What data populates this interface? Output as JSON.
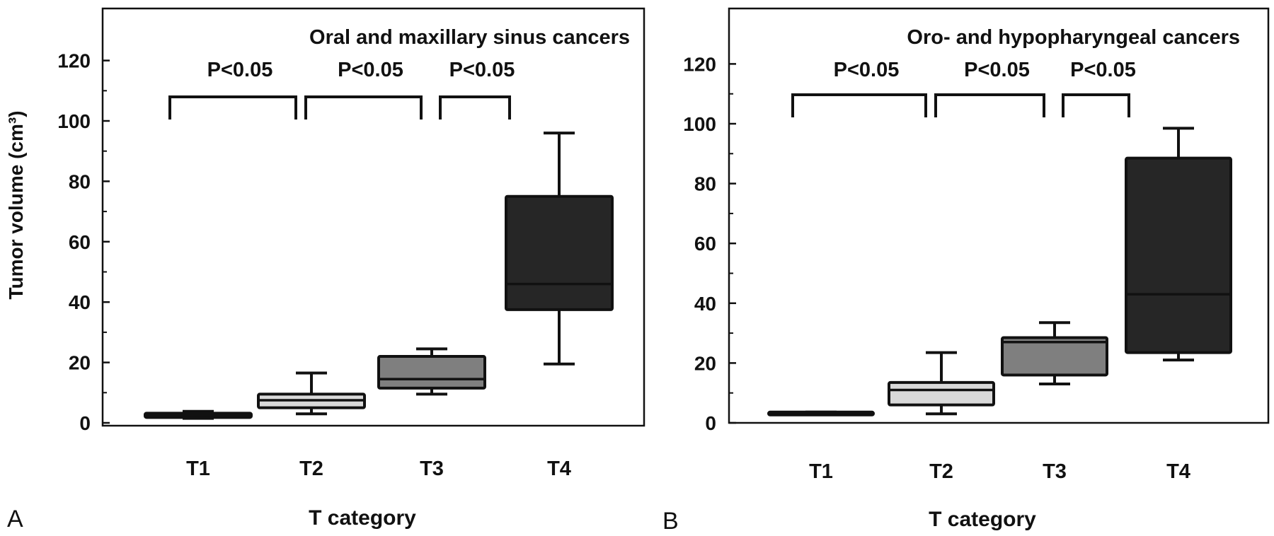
{
  "figure": {
    "ylabel": "Tumor volume (cm³)",
    "xlabel": "T category"
  },
  "colors": {
    "frame": "#111111",
    "T1": "#2a2a2a",
    "T2": "#d9d9d9",
    "T3": "#7f7f7f",
    "T4": "#262626",
    "median_on_dark": "#111111"
  },
  "chart_data": [
    {
      "type": "box",
      "panel_letter": "A",
      "title": "Oral and maxillary sinus cancers",
      "xlabel": "T category",
      "ylabel": "Tumor volume (cm³)",
      "ylim": [
        0,
        135
      ],
      "yticks": [
        0,
        20,
        40,
        60,
        80,
        100,
        120
      ],
      "grid": false,
      "categories": [
        "T1",
        "T2",
        "T3",
        "T4"
      ],
      "boxes": [
        {
          "category": "T1",
          "whisker_low": 1.5,
          "q1": 1.8,
          "median": 2.5,
          "q3": 3.2,
          "whisker_high": 3.8
        },
        {
          "category": "T2",
          "whisker_low": 3,
          "q1": 5,
          "median": 7.5,
          "q3": 9.5,
          "whisker_high": 16.5
        },
        {
          "category": "T3",
          "whisker_low": 9.5,
          "q1": 11.5,
          "median": 14.5,
          "q3": 22,
          "whisker_high": 24.5
        },
        {
          "category": "T4",
          "whisker_low": 19.5,
          "q1": 37.5,
          "median": 46,
          "q3": 75,
          "whisker_high": 96
        }
      ],
      "comparisons": [
        {
          "from": "T1",
          "to": "T2",
          "label": "P<0.05"
        },
        {
          "from": "T2",
          "to": "T3",
          "label": "P<0.05"
        },
        {
          "from": "T3",
          "to": "T4",
          "label": "P<0.05"
        }
      ]
    },
    {
      "type": "box",
      "panel_letter": "B",
      "title": "Oro- and hypopharyngeal cancers",
      "xlabel": "T category",
      "ylim": [
        0,
        135
      ],
      "yticks": [
        0,
        20,
        40,
        60,
        80,
        100,
        120
      ],
      "grid": false,
      "categories": [
        "T1",
        "T2",
        "T3",
        "T4"
      ],
      "boxes": [
        {
          "category": "T1",
          "whisker_low": 2.8,
          "q1": 2.8,
          "median": 3.2,
          "q3": 3.6,
          "whisker_high": 3.6
        },
        {
          "category": "T2",
          "whisker_low": 3,
          "q1": 6,
          "median": 11,
          "q3": 13.5,
          "whisker_high": 23.5
        },
        {
          "category": "T3",
          "whisker_low": 13,
          "q1": 16,
          "median": 27,
          "q3": 28.5,
          "whisker_high": 33.5
        },
        {
          "category": "T4",
          "whisker_low": 21,
          "q1": 23.5,
          "median": 43,
          "q3": 88.5,
          "whisker_high": 98.5
        }
      ],
      "comparisons": [
        {
          "from": "T1",
          "to": "T2",
          "label": "P<0.05"
        },
        {
          "from": "T2",
          "to": "T3",
          "label": "P<0.05"
        },
        {
          "from": "T3",
          "to": "T4",
          "label": "P<0.05"
        }
      ]
    }
  ]
}
